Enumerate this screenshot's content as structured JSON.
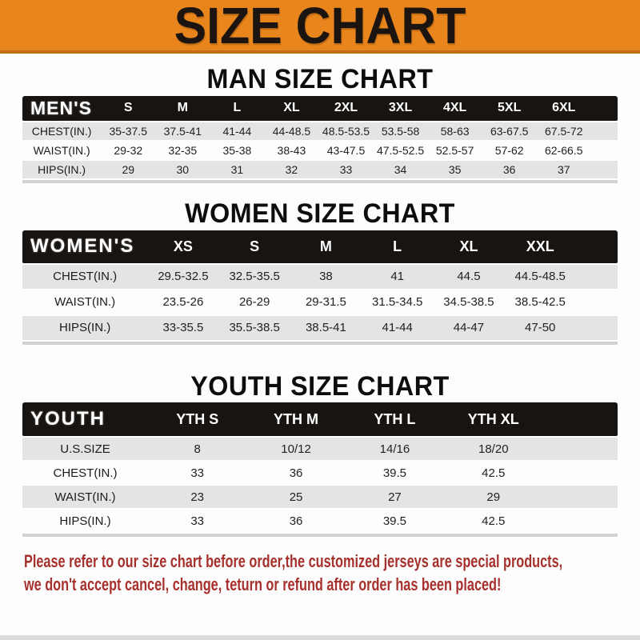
{
  "banner": {
    "title": "SIZE CHART"
  },
  "sections": {
    "man": {
      "heading": "MAN SIZE CHART"
    },
    "women": {
      "heading": "WOMEN SIZE CHART"
    },
    "youth": {
      "heading": "YOUTH SIZE CHART"
    }
  },
  "tables": {
    "men": {
      "header": [
        "MEN'S",
        "S",
        "M",
        "L",
        "XL",
        "2XL",
        "3XL",
        "4XL",
        "5XL",
        "6XL"
      ],
      "rows": [
        [
          "CHEST(IN.)",
          "35-37.5",
          "37.5-41",
          "41-44",
          "44-48.5",
          "48.5-53.5",
          "53.5-58",
          "58-63",
          "63-67.5",
          "67.5-72"
        ],
        [
          "WAIST(IN.)",
          "29-32",
          "32-35",
          "35-38",
          "38-43",
          "43-47.5",
          "47.5-52.5",
          "52.5-57",
          "57-62",
          "62-66.5"
        ],
        [
          "HIPS(IN.)",
          "29",
          "30",
          "31",
          "32",
          "33",
          "34",
          "35",
          "36",
          "37"
        ]
      ]
    },
    "women": {
      "header": [
        "WOMEN'S",
        "XS",
        "S",
        "M",
        "L",
        "XL",
        "XXL"
      ],
      "rows": [
        [
          "CHEST(IN.)",
          "29.5-32.5",
          "32.5-35.5",
          "38",
          "41",
          "44.5",
          "44.5-48.5"
        ],
        [
          "WAIST(IN.)",
          "23.5-26",
          "26-29",
          "29-31.5",
          "31.5-34.5",
          "34.5-38.5",
          "38.5-42.5"
        ],
        [
          "HIPS(IN.)",
          "33-35.5",
          "35.5-38.5",
          "38.5-41",
          "41-44",
          "44-47",
          "47-50"
        ]
      ]
    },
    "youth": {
      "header": [
        "YOUTH",
        "YTH S",
        "YTH M",
        "YTH L",
        "YTH XL"
      ],
      "rows": [
        [
          "U.S.SIZE",
          "8",
          "10/12",
          "14/16",
          "18/20"
        ],
        [
          "CHEST(IN.)",
          "33",
          "36",
          "39.5",
          "42.5"
        ],
        [
          "WAIST(IN.)",
          "23",
          "25",
          "27",
          "29"
        ],
        [
          "HIPS(IN.)",
          "33",
          "36",
          "39.5",
          "42.5"
        ]
      ]
    }
  },
  "footer": {
    "line1": "Please refer to our size chart before order,the customized jerseys are special products,",
    "line2": "we don't accept cancel, change, teturn or refund after order has been placed!"
  },
  "colors": {
    "banner_bg": "#e8861d",
    "banner_border": "#c06c10",
    "header_bar_bg": "#181411",
    "row_stripe": "#e4e4e4",
    "footer_text": "#a5302c"
  }
}
